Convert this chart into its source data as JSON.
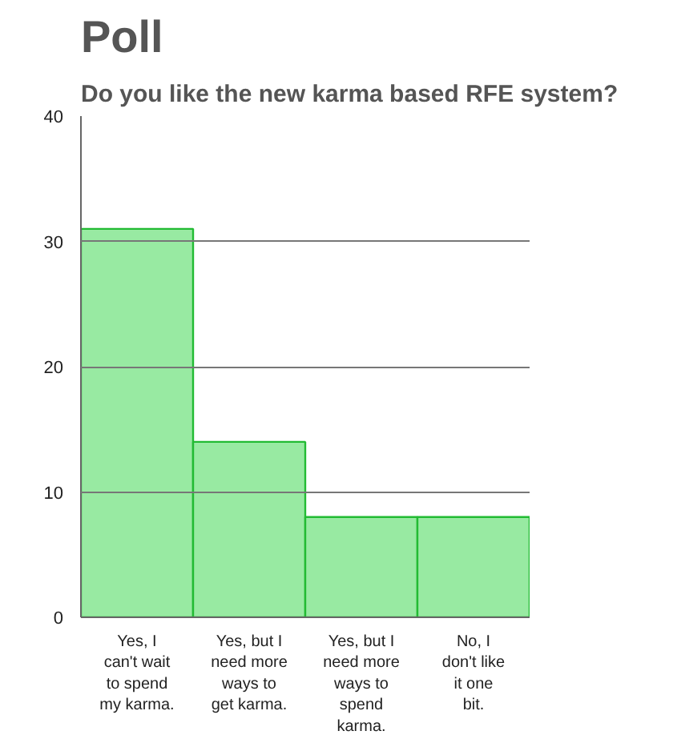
{
  "chart_data": {
    "type": "bar",
    "title": "Poll",
    "subtitle": "Do you like the new karma based RFE system?",
    "categories": [
      "Yes, I can't wait to spend my karma.",
      "Yes, but I need more ways to get karma.",
      "Yes, but I need more ways to spend karma.",
      "No, I don't like it one bit."
    ],
    "values": [
      31,
      14,
      8,
      8
    ],
    "color": "#98eaa2",
    "ylim": [
      0,
      40
    ],
    "yticks": [
      0,
      10,
      20,
      30,
      40
    ],
    "grid": "y"
  }
}
